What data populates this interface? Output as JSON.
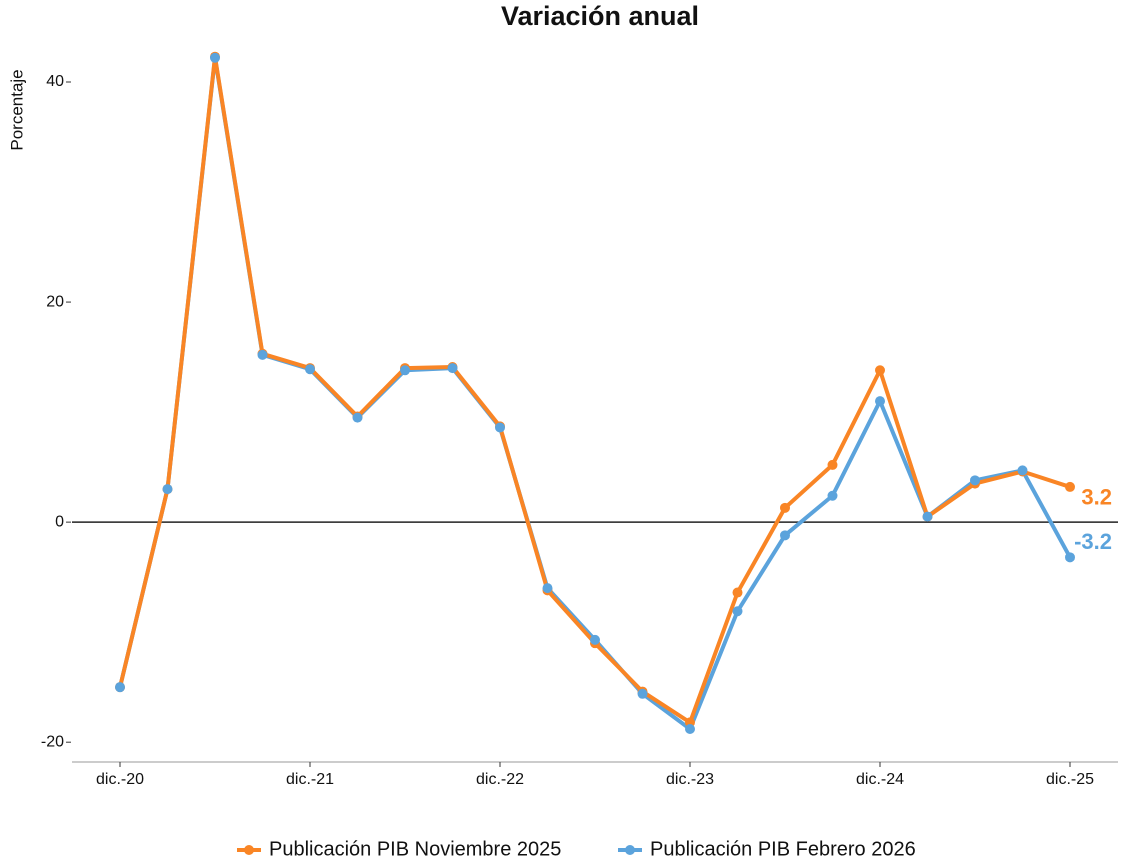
{
  "chart_data": {
    "type": "line",
    "title": "Variación anual",
    "y_label": "Porcentaje",
    "categories": [
      "dic.-20",
      null,
      null,
      null,
      "dic.-21",
      null,
      null,
      null,
      "dic.-22",
      null,
      null,
      null,
      "dic.-23",
      null,
      null,
      null,
      "dic.-24",
      null,
      null,
      null,
      "dic.-25"
    ],
    "series": [
      {
        "name": "Publicación PIB Noviembre 2025",
        "color": "#f98525",
        "values": [
          -15.0,
          3.0,
          42.3,
          15.3,
          14.0,
          9.6,
          14.0,
          14.1,
          8.7,
          -6.2,
          -11.0,
          -15.4,
          -18.2,
          -6.4,
          1.3,
          5.2,
          13.8,
          0.5,
          3.5,
          4.6,
          3.2
        ]
      },
      {
        "name": "Publicación PIB Febrero 2026",
        "color": "#5ba3dc",
        "values": [
          -15.0,
          3.0,
          42.2,
          15.2,
          13.9,
          9.5,
          13.8,
          14.0,
          8.6,
          -6.0,
          -10.7,
          -15.6,
          -18.8,
          -8.1,
          -1.2,
          2.4,
          11.0,
          0.5,
          3.8,
          4.7,
          -3.2
        ]
      }
    ],
    "ylim": [
      -21.8,
      43.5
    ],
    "yticks": [
      -20,
      0,
      20,
      40
    ],
    "reference_line": 0,
    "grid": false,
    "legend": "bottom"
  }
}
